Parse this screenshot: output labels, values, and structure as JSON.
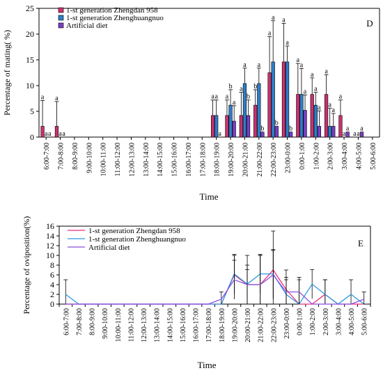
{
  "chart_data": [
    {
      "type": "bar",
      "panel_label": "D",
      "ylabel": "Percentage of mating( %)",
      "xlabel": "Time",
      "ylim": [
        0,
        25
      ],
      "yticks": [
        0,
        5,
        10,
        15,
        20,
        25
      ],
      "grid": false,
      "legend_position": "top-left",
      "categories": [
        "6:00-7:00",
        "7:00-8:00",
        "8:00-9:00",
        "9:00-10:00",
        "10:00-11:00",
        "11:00-12:00",
        "12:00-13:00",
        "13:00-14:00",
        "14:00-15:00",
        "15:00-16:00",
        "16:00-17:00",
        "17:00-18:00",
        "18:00-19:00",
        "19:00-20:00",
        "20:00-21:00",
        "21:00-22:00",
        "22:00-23:00",
        "23:00-0:00",
        "0:00-1:00",
        "1:00-2:00",
        "2:00-3:00",
        "3:00-4:00",
        "4:00-5:00",
        "5:00-6:00"
      ],
      "series": [
        {
          "name": "1-st generation Zhengdan 958",
          "color": "#c8326e",
          "values": [
            2.1,
            2.1,
            0,
            0,
            0,
            0,
            0,
            0,
            0,
            0,
            0,
            0,
            4.2,
            4.2,
            4.2,
            6.2,
            12.5,
            14.6,
            8.3,
            8.3,
            8.3,
            4.2,
            0,
            0
          ],
          "errors": [
            5,
            4.8,
            0,
            0,
            0,
            0,
            0,
            0,
            0,
            0,
            0,
            0,
            3,
            3,
            4.5,
            3,
            7,
            7.5,
            6,
            3.2,
            3.8,
            3,
            0,
            0
          ],
          "labels": [
            "a",
            "a",
            "",
            "",
            "",
            "",
            "",
            "",
            "",
            "",
            "",
            "",
            "a",
            "a",
            "a",
            "b",
            "a",
            "a",
            "a",
            "a",
            "a",
            "a",
            "a",
            ""
          ]
        },
        {
          "name": "1-st generation Zhenghuangnuo",
          "color": "#2e7dc8",
          "values": [
            0,
            0,
            0,
            0,
            0,
            0,
            0,
            0,
            0,
            0,
            0,
            0,
            4.2,
            6.2,
            10.4,
            10.4,
            14.6,
            14.6,
            8.3,
            6.2,
            2.1,
            0,
            0,
            0
          ],
          "errors": [
            0,
            0,
            0,
            0,
            0,
            0,
            0,
            0,
            0,
            0,
            0,
            0,
            3,
            3,
            3,
            3,
            8,
            3.1,
            5,
            2.5,
            3.5,
            0,
            0,
            0
          ],
          "labels": [
            "a",
            "a",
            "",
            "",
            "",
            "",
            "",
            "",
            "",
            "",
            "",
            "",
            "a",
            "b",
            "a",
            "a",
            "a",
            "a",
            "a",
            "a",
            "a",
            "a",
            "a",
            ""
          ]
        },
        {
          "name": "Artificial diet",
          "color": "#7a3ec4",
          "values": [
            0,
            0,
            0,
            0,
            0,
            0,
            0,
            0,
            0,
            0,
            0,
            0,
            0,
            3.1,
            4.2,
            1.0,
            2.1,
            1.0,
            5.2,
            2.1,
            2.1,
            1.0,
            1.0,
            0
          ],
          "errors": [
            0,
            0,
            0,
            0,
            0,
            0,
            0,
            0,
            0,
            0,
            0,
            0,
            0,
            3,
            3,
            0,
            0,
            0,
            3,
            3,
            2.5,
            0,
            0,
            0
          ],
          "labels": [
            "a",
            "a",
            "",
            "",
            "",
            "",
            "",
            "",
            "",
            "",
            "",
            "",
            "a",
            "a",
            "b",
            "b",
            "b",
            "b",
            "a",
            "a",
            "a",
            "a",
            "a",
            ""
          ]
        }
      ]
    },
    {
      "type": "line",
      "panel_label": "E",
      "ylabel": "Percentage of oviposition(%)",
      "xlabel": "Time",
      "ylim": [
        0,
        16
      ],
      "yticks": [
        0,
        2,
        4,
        6,
        8,
        10,
        12,
        14,
        16
      ],
      "grid": false,
      "legend_position": "top-left",
      "categories": [
        "6:00-7:00",
        "7:00-8:00",
        "8:00-9:00",
        "9:00-10:00",
        "10:00-11:00",
        "11:00-12:00",
        "12:00-13:00",
        "13:00-14:00",
        "14:00-15:00",
        "15:00-16:00",
        "16:00-17:00",
        "17:00-18:00",
        "18:00-19:00",
        "19:00-20:00",
        "20:00-21:00",
        "21:00-22:00",
        "22:00-23:00",
        "23:00-0:00",
        "0:00-1:00",
        "1:00-2:00",
        "2:00-3:00",
        "3:00-4:00",
        "4:00-5:00",
        "5:00-6:00"
      ],
      "series": [
        {
          "name": "1-st generation Zhengdan 958",
          "color": "#ee2a7b",
          "values": [
            0,
            0,
            0,
            0,
            0,
            0,
            0,
            0,
            0,
            0,
            0,
            0,
            0,
            6.0,
            4.0,
            4.0,
            7.0,
            3.0,
            0,
            0,
            2.0,
            0,
            0,
            0
          ],
          "errors": [
            0,
            0,
            0,
            0,
            0,
            0,
            0,
            0,
            0,
            0,
            0,
            0,
            0,
            4,
            6,
            6,
            8,
            4,
            0,
            0,
            3,
            0,
            0,
            0
          ]
        },
        {
          "name": "1-st generation Zhenghuangnuo",
          "color": "#2b9ae0",
          "values": [
            2.0,
            0,
            0,
            0,
            0,
            0,
            0,
            0,
            0,
            0,
            0,
            0,
            0,
            6.2,
            4.1,
            6.2,
            6.2,
            2.0,
            0,
            4.1,
            2.0,
            0,
            2.0,
            0
          ],
          "errors": [
            3,
            0,
            0,
            0,
            0,
            0,
            0,
            0,
            0,
            0,
            0,
            0,
            0,
            4,
            3,
            4,
            5,
            3,
            5,
            3,
            3,
            0,
            3,
            0
          ]
        },
        {
          "name": "Artificial diet",
          "color": "#8a4fe0",
          "values": [
            0,
            0,
            0,
            0,
            0,
            0,
            0,
            0,
            0,
            0,
            0,
            0,
            1.0,
            5.0,
            4.0,
            4.0,
            6.0,
            2.5,
            2.5,
            0,
            0,
            0,
            0,
            1.0
          ],
          "errors": [
            0,
            0,
            0,
            0,
            0,
            0,
            0,
            0,
            0,
            0,
            0,
            0,
            1.5,
            4,
            4,
            6,
            5,
            3,
            3,
            0,
            0,
            0,
            0,
            1.5
          ]
        }
      ]
    }
  ]
}
